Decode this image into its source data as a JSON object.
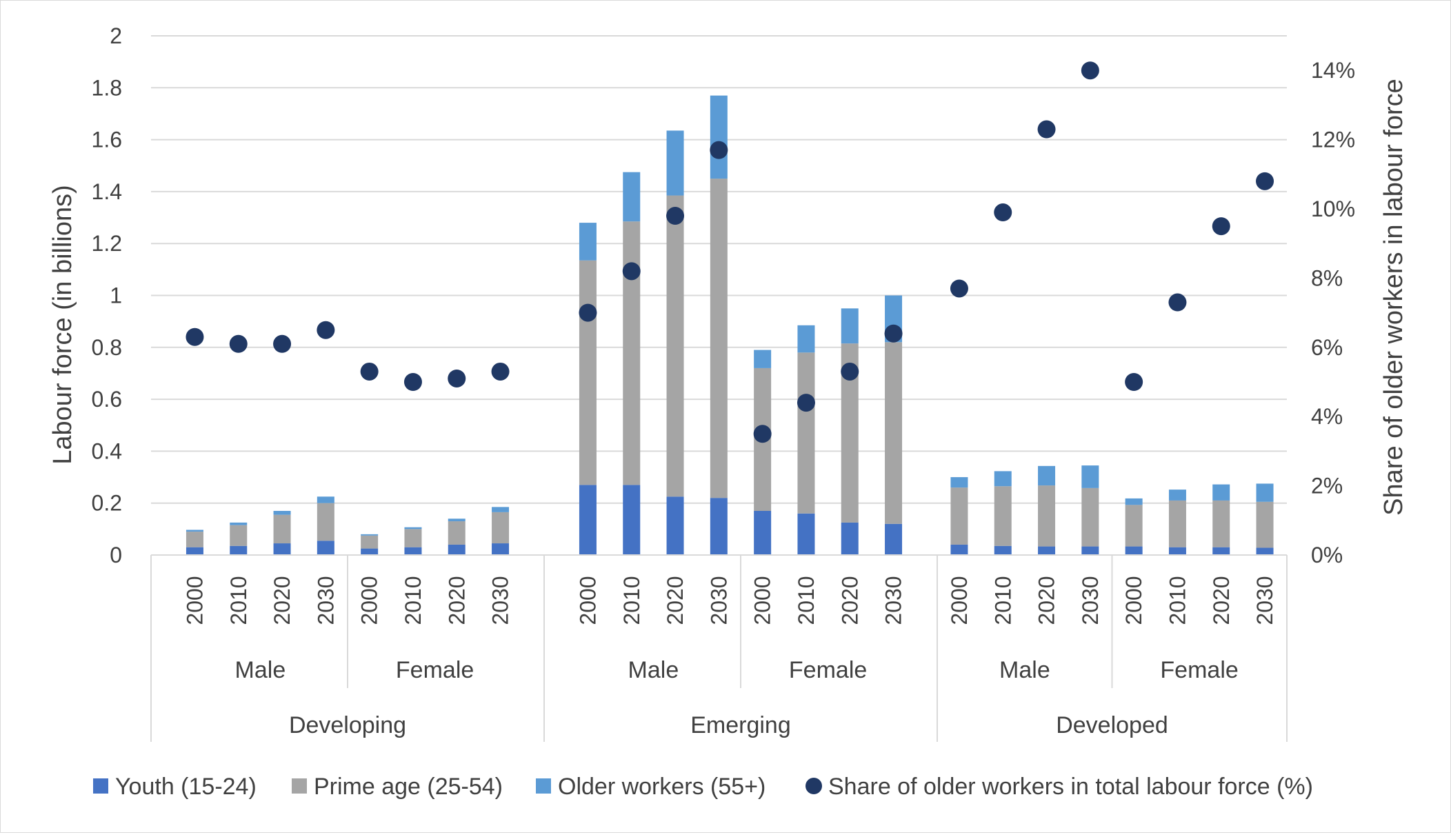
{
  "chart_data": {
    "type": "bar",
    "stacked": true,
    "ylabel": "Labour force (in billions)",
    "y2label": "Share of older workers in labour force",
    "ylim": [
      0,
      2
    ],
    "y2lim": [
      0,
      15
    ],
    "yticks": [
      "0",
      "0.2",
      "0.4",
      "0.6",
      "0.8",
      "1",
      "1.2",
      "1.4",
      "1.6",
      "1.8",
      "2"
    ],
    "y2ticks": [
      "0%",
      "2%",
      "4%",
      "6%",
      "8%",
      "10%",
      "12%",
      "14%"
    ],
    "grid": true,
    "legend_position": "bottom",
    "colors": {
      "youth": "#4472c4",
      "prime": "#a5a5a5",
      "older": "#5b9bd5",
      "share": "#203864",
      "grid": "#d9d9d9",
      "axis_text": "#595959"
    },
    "regions": [
      {
        "name": "Developing",
        "genders": [
          {
            "name": "Male",
            "years": [
              "2000",
              "2010",
              "2020",
              "2030"
            ]
          },
          {
            "name": "Female",
            "years": [
              "2000",
              "2010",
              "2020",
              "2030"
            ]
          }
        ]
      },
      {
        "name": "Emerging",
        "genders": [
          {
            "name": "Male",
            "years": [
              "2000",
              "2010",
              "2020",
              "2030"
            ]
          },
          {
            "name": "Female",
            "years": [
              "2000",
              "2010",
              "2020",
              "2030"
            ]
          }
        ]
      },
      {
        "name": "Developed",
        "genders": [
          {
            "name": "Male",
            "years": [
              "2000",
              "2010",
              "2020",
              "2030"
            ]
          },
          {
            "name": "Female",
            "years": [
              "2000",
              "2010",
              "2020",
              "2030"
            ]
          }
        ]
      }
    ],
    "series": [
      {
        "name": "Youth (15-24)",
        "axis": "left",
        "values": [
          0.03,
          0.035,
          0.045,
          0.055,
          0.025,
          0.03,
          0.04,
          0.045,
          0.27,
          0.27,
          0.225,
          0.22,
          0.17,
          0.16,
          0.125,
          0.12,
          0.04,
          0.035,
          0.033,
          0.033,
          0.033,
          0.03,
          0.03,
          0.028
        ]
      },
      {
        "name": "Prime age (25-54)",
        "axis": "left",
        "values": [
          0.06,
          0.08,
          0.11,
          0.145,
          0.05,
          0.07,
          0.09,
          0.12,
          0.865,
          1.015,
          1.16,
          1.23,
          0.55,
          0.62,
          0.69,
          0.7,
          0.22,
          0.23,
          0.235,
          0.225,
          0.16,
          0.18,
          0.18,
          0.177
        ]
      },
      {
        "name": "Older workers (55+)",
        "axis": "left",
        "values": [
          0.007,
          0.01,
          0.015,
          0.025,
          0.005,
          0.007,
          0.01,
          0.02,
          0.145,
          0.19,
          0.25,
          0.32,
          0.07,
          0.105,
          0.135,
          0.18,
          0.04,
          0.058,
          0.075,
          0.087,
          0.025,
          0.042,
          0.062,
          0.07
        ]
      },
      {
        "name": "Share of older workers in total labour force (%)",
        "axis": "right",
        "type": "scatter",
        "values": [
          6.3,
          6.1,
          6.1,
          6.5,
          5.3,
          5.0,
          5.1,
          5.3,
          7.0,
          8.2,
          9.8,
          11.7,
          3.5,
          4.4,
          5.3,
          6.4,
          7.7,
          9.9,
          12.3,
          14.0,
          5.0,
          7.3,
          9.5,
          10.8
        ]
      }
    ]
  }
}
